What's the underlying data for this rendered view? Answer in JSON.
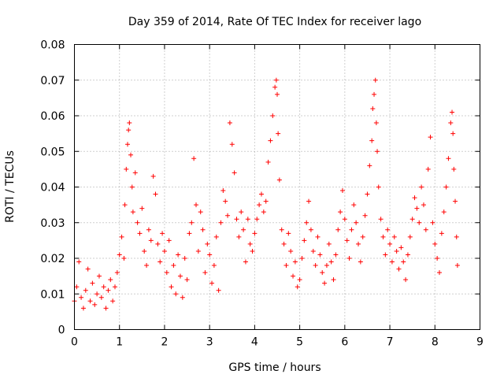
{
  "chart_data": {
    "type": "scatter",
    "title": "Day 359 of 2014, Rate Of TEC Index for receiver lago",
    "xlabel": "GPS time / hours",
    "ylabel": "ROTI / TECUs",
    "xlim": [
      0,
      9
    ],
    "ylim": [
      0,
      0.08
    ],
    "x_ticks": [
      0,
      1,
      2,
      3,
      4,
      5,
      6,
      7,
      8,
      9
    ],
    "y_ticks": [
      0,
      0.01,
      0.02,
      0.03,
      0.04,
      0.05,
      0.06,
      0.07,
      0.08
    ],
    "x_tick_labels": [
      "0",
      "1",
      "2",
      "3",
      "4",
      "5",
      "6",
      "7",
      "8",
      "9"
    ],
    "y_tick_labels": [
      "0",
      "0.01",
      "0.02",
      "0.03",
      "0.04",
      "0.05",
      "0.06",
      "0.07",
      "0.08"
    ],
    "grid": true,
    "marker": "+",
    "color": "#ff0000",
    "series": [
      {
        "name": "ROTI",
        "points": [
          [
            0.0,
            0.008
          ],
          [
            0.05,
            0.012
          ],
          [
            0.1,
            0.019
          ],
          [
            0.15,
            0.009
          ],
          [
            0.2,
            0.006
          ],
          [
            0.25,
            0.011
          ],
          [
            0.3,
            0.017
          ],
          [
            0.35,
            0.008
          ],
          [
            0.4,
            0.013
          ],
          [
            0.45,
            0.007
          ],
          [
            0.5,
            0.01
          ],
          [
            0.55,
            0.015
          ],
          [
            0.6,
            0.009
          ],
          [
            0.65,
            0.012
          ],
          [
            0.7,
            0.006
          ],
          [
            0.75,
            0.011
          ],
          [
            0.8,
            0.014
          ],
          [
            0.85,
            0.008
          ],
          [
            0.9,
            0.012
          ],
          [
            0.95,
            0.016
          ],
          [
            1.0,
            0.021
          ],
          [
            1.05,
            0.026
          ],
          [
            1.1,
            0.02
          ],
          [
            1.12,
            0.035
          ],
          [
            1.15,
            0.045
          ],
          [
            1.18,
            0.052
          ],
          [
            1.2,
            0.056
          ],
          [
            1.22,
            0.058
          ],
          [
            1.25,
            0.049
          ],
          [
            1.28,
            0.04
          ],
          [
            1.3,
            0.033
          ],
          [
            1.35,
            0.044
          ],
          [
            1.4,
            0.03
          ],
          [
            1.45,
            0.027
          ],
          [
            1.5,
            0.034
          ],
          [
            1.55,
            0.022
          ],
          [
            1.6,
            0.018
          ],
          [
            1.65,
            0.028
          ],
          [
            1.7,
            0.025
          ],
          [
            1.75,
            0.043
          ],
          [
            1.8,
            0.038
          ],
          [
            1.85,
            0.024
          ],
          [
            1.9,
            0.019
          ],
          [
            1.95,
            0.027
          ],
          [
            2.0,
            0.022
          ],
          [
            2.05,
            0.016
          ],
          [
            2.1,
            0.025
          ],
          [
            2.15,
            0.012
          ],
          [
            2.2,
            0.018
          ],
          [
            2.25,
            0.01
          ],
          [
            2.3,
            0.021
          ],
          [
            2.35,
            0.015
          ],
          [
            2.4,
            0.009
          ],
          [
            2.45,
            0.02
          ],
          [
            2.5,
            0.014
          ],
          [
            2.55,
            0.027
          ],
          [
            2.6,
            0.03
          ],
          [
            2.65,
            0.048
          ],
          [
            2.7,
            0.035
          ],
          [
            2.75,
            0.022
          ],
          [
            2.8,
            0.033
          ],
          [
            2.85,
            0.028
          ],
          [
            2.9,
            0.016
          ],
          [
            2.95,
            0.024
          ],
          [
            3.0,
            0.021
          ],
          [
            3.05,
            0.013
          ],
          [
            3.1,
            0.018
          ],
          [
            3.15,
            0.026
          ],
          [
            3.2,
            0.011
          ],
          [
            3.25,
            0.03
          ],
          [
            3.3,
            0.039
          ],
          [
            3.35,
            0.036
          ],
          [
            3.4,
            0.032
          ],
          [
            3.45,
            0.058
          ],
          [
            3.5,
            0.052
          ],
          [
            3.55,
            0.044
          ],
          [
            3.6,
            0.031
          ],
          [
            3.65,
            0.026
          ],
          [
            3.7,
            0.033
          ],
          [
            3.75,
            0.028
          ],
          [
            3.8,
            0.019
          ],
          [
            3.85,
            0.031
          ],
          [
            3.9,
            0.024
          ],
          [
            3.95,
            0.022
          ],
          [
            4.0,
            0.027
          ],
          [
            4.05,
            0.031
          ],
          [
            4.1,
            0.035
          ],
          [
            4.15,
            0.038
          ],
          [
            4.2,
            0.033
          ],
          [
            4.25,
            0.036
          ],
          [
            4.3,
            0.047
          ],
          [
            4.35,
            0.053
          ],
          [
            4.4,
            0.06
          ],
          [
            4.45,
            0.068
          ],
          [
            4.48,
            0.07
          ],
          [
            4.5,
            0.066
          ],
          [
            4.52,
            0.055
          ],
          [
            4.55,
            0.042
          ],
          [
            4.6,
            0.028
          ],
          [
            4.65,
            0.024
          ],
          [
            4.7,
            0.018
          ],
          [
            4.75,
            0.027
          ],
          [
            4.8,
            0.022
          ],
          [
            4.85,
            0.015
          ],
          [
            4.9,
            0.019
          ],
          [
            4.95,
            0.012
          ],
          [
            5.0,
            0.014
          ],
          [
            5.05,
            0.02
          ],
          [
            5.1,
            0.025
          ],
          [
            5.15,
            0.03
          ],
          [
            5.2,
            0.036
          ],
          [
            5.25,
            0.028
          ],
          [
            5.3,
            0.022
          ],
          [
            5.35,
            0.018
          ],
          [
            5.4,
            0.026
          ],
          [
            5.45,
            0.021
          ],
          [
            5.5,
            0.016
          ],
          [
            5.55,
            0.013
          ],
          [
            5.6,
            0.018
          ],
          [
            5.65,
            0.024
          ],
          [
            5.7,
            0.019
          ],
          [
            5.75,
            0.014
          ],
          [
            5.8,
            0.021
          ],
          [
            5.85,
            0.028
          ],
          [
            5.9,
            0.033
          ],
          [
            5.95,
            0.039
          ],
          [
            6.0,
            0.031
          ],
          [
            6.05,
            0.025
          ],
          [
            6.1,
            0.02
          ],
          [
            6.15,
            0.028
          ],
          [
            6.2,
            0.035
          ],
          [
            6.25,
            0.03
          ],
          [
            6.3,
            0.024
          ],
          [
            6.35,
            0.019
          ],
          [
            6.4,
            0.026
          ],
          [
            6.45,
            0.032
          ],
          [
            6.5,
            0.038
          ],
          [
            6.55,
            0.046
          ],
          [
            6.6,
            0.053
          ],
          [
            6.62,
            0.062
          ],
          [
            6.65,
            0.066
          ],
          [
            6.68,
            0.07
          ],
          [
            6.7,
            0.058
          ],
          [
            6.72,
            0.05
          ],
          [
            6.75,
            0.04
          ],
          [
            6.8,
            0.031
          ],
          [
            6.85,
            0.026
          ],
          [
            6.9,
            0.021
          ],
          [
            6.95,
            0.028
          ],
          [
            7.0,
            0.024
          ],
          [
            7.05,
            0.019
          ],
          [
            7.1,
            0.026
          ],
          [
            7.15,
            0.022
          ],
          [
            7.2,
            0.017
          ],
          [
            7.25,
            0.023
          ],
          [
            7.3,
            0.019
          ],
          [
            7.35,
            0.014
          ],
          [
            7.4,
            0.021
          ],
          [
            7.45,
            0.026
          ],
          [
            7.5,
            0.031
          ],
          [
            7.55,
            0.037
          ],
          [
            7.6,
            0.034
          ],
          [
            7.65,
            0.03
          ],
          [
            7.7,
            0.04
          ],
          [
            7.75,
            0.035
          ],
          [
            7.8,
            0.028
          ],
          [
            7.85,
            0.045
          ],
          [
            7.9,
            0.054
          ],
          [
            7.95,
            0.03
          ],
          [
            8.0,
            0.024
          ],
          [
            8.05,
            0.02
          ],
          [
            8.1,
            0.016
          ],
          [
            8.15,
            0.027
          ],
          [
            8.2,
            0.033
          ],
          [
            8.25,
            0.04
          ],
          [
            8.3,
            0.048
          ],
          [
            8.35,
            0.058
          ],
          [
            8.38,
            0.061
          ],
          [
            8.4,
            0.055
          ],
          [
            8.42,
            0.045
          ],
          [
            8.45,
            0.036
          ],
          [
            8.48,
            0.026
          ],
          [
            8.5,
            0.018
          ]
        ]
      }
    ]
  }
}
